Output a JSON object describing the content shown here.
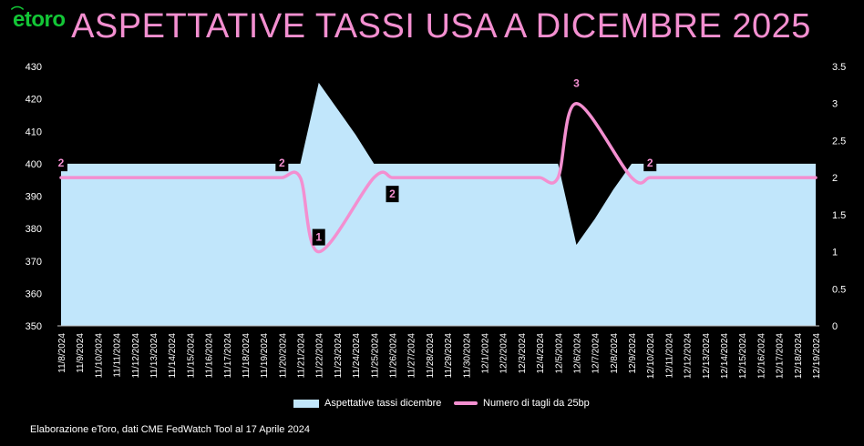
{
  "brand": {
    "logo_text": "etoro",
    "logo_color": "#13c636"
  },
  "title": "ASPETTATIVE TASSI USA A DICEMBRE 2025",
  "source_note": "Elaborazione eToro, dati CME FedWatch Tool al 17 Aprile 2024",
  "colors": {
    "title": "#f38fd0",
    "area": "#c1e6fb",
    "line": "#f38fd0",
    "background": "#000000"
  },
  "chart_data": {
    "type": "area",
    "title": "ASPETTATIVE TASSI USA A DICEMBRE 2025",
    "categories": [
      "11/8/2024",
      "11/9/2024",
      "11/10/2024",
      "11/11/2024",
      "11/12/2024",
      "11/13/2024",
      "11/14/2024",
      "11/15/2024",
      "11/16/2024",
      "11/17/2024",
      "11/18/2024",
      "11/19/2024",
      "11/20/2024",
      "11/21/2024",
      "11/22/2024",
      "11/23/2024",
      "11/24/2024",
      "11/25/2024",
      "11/26/2024",
      "11/27/2024",
      "11/28/2024",
      "11/29/2024",
      "11/30/2024",
      "12/1/2024",
      "12/2/2024",
      "12/3/2024",
      "12/4/2024",
      "12/5/2024",
      "12/6/2024",
      "12/7/2024",
      "12/8/2024",
      "12/9/2024",
      "12/10/2024",
      "12/11/2024",
      "12/12/2024",
      "12/13/2024",
      "12/14/2024",
      "12/15/2024",
      "12/16/2024",
      "12/17/2024",
      "12/18/2024",
      "12/19/2024"
    ],
    "y_left": {
      "ylim": [
        350,
        430
      ],
      "ticks": [
        "350",
        "360",
        "370",
        "380",
        "390",
        "400",
        "410",
        "420",
        "430"
      ]
    },
    "y_right": {
      "ylim": [
        0,
        3.5
      ],
      "ticks": [
        "0",
        "0.5",
        "1",
        "1.5",
        "2",
        "2.5",
        "3",
        "3.5"
      ]
    },
    "series": [
      {
        "name": "Aspettative tassi dicembre",
        "type": "area",
        "axis": "left",
        "values": [
          400,
          400,
          400,
          400,
          400,
          400,
          400,
          400,
          400,
          400,
          400,
          400,
          400,
          400,
          425,
          417,
          409,
          400,
          400,
          400,
          400,
          400,
          400,
          400,
          400,
          400,
          400,
          400,
          375,
          383,
          392,
          400,
          400,
          400,
          400,
          400,
          400,
          400,
          400,
          400,
          400,
          400
        ]
      },
      {
        "name": "Numero di tagli da 25bp",
        "type": "line",
        "axis": "right",
        "values": [
          2,
          2,
          2,
          2,
          2,
          2,
          2,
          2,
          2,
          2,
          2,
          2,
          2,
          2,
          1,
          null,
          null,
          2,
          2,
          2,
          2,
          2,
          2,
          2,
          2,
          2,
          2,
          2,
          3,
          null,
          null,
          2,
          2,
          2,
          2,
          2,
          2,
          2,
          2,
          2,
          2,
          2
        ],
        "data_labels": [
          {
            "index": 0,
            "text": "2"
          },
          {
            "index": 12,
            "text": "2"
          },
          {
            "index": 14,
            "text": "1"
          },
          {
            "index": 18,
            "text": "2"
          },
          {
            "index": 28,
            "text": "3"
          },
          {
            "index": 32,
            "text": "2"
          }
        ]
      }
    ],
    "legend": {
      "placement": "bottom",
      "items": [
        "Aspettative tassi dicembre",
        "Numero di tagli da 25bp"
      ]
    },
    "grid": false
  }
}
